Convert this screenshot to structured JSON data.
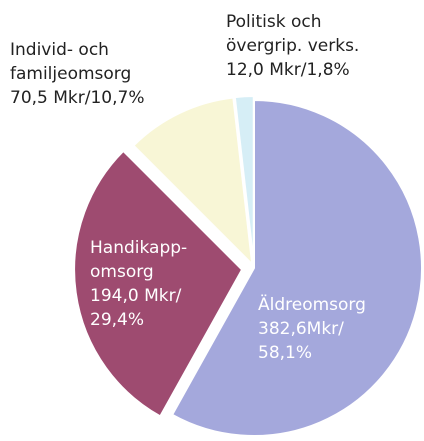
{
  "chart_data": {
    "type": "pie",
    "categories": [
      [
        "Äldreomsorg"
      ],
      [
        "Handikapp-",
        "omsorg"
      ],
      [
        "Individ- och",
        "familjeomsorg"
      ],
      [
        "Politisk och",
        "övergrip. verks."
      ]
    ],
    "amount_labels": [
      "382,6Mkr/",
      "194,0 Mkr/",
      "70,5 Mkr/",
      "12,0 Mkr/"
    ],
    "values": [
      58.1,
      29.4,
      10.7,
      1.8
    ],
    "value_labels": [
      "58,1%",
      "29,4%",
      "10,7%",
      "1,8%"
    ],
    "colors": [
      "#a4a8dc",
      "#9e4b70",
      "#f8f6d6",
      "#d6eef6"
    ]
  }
}
